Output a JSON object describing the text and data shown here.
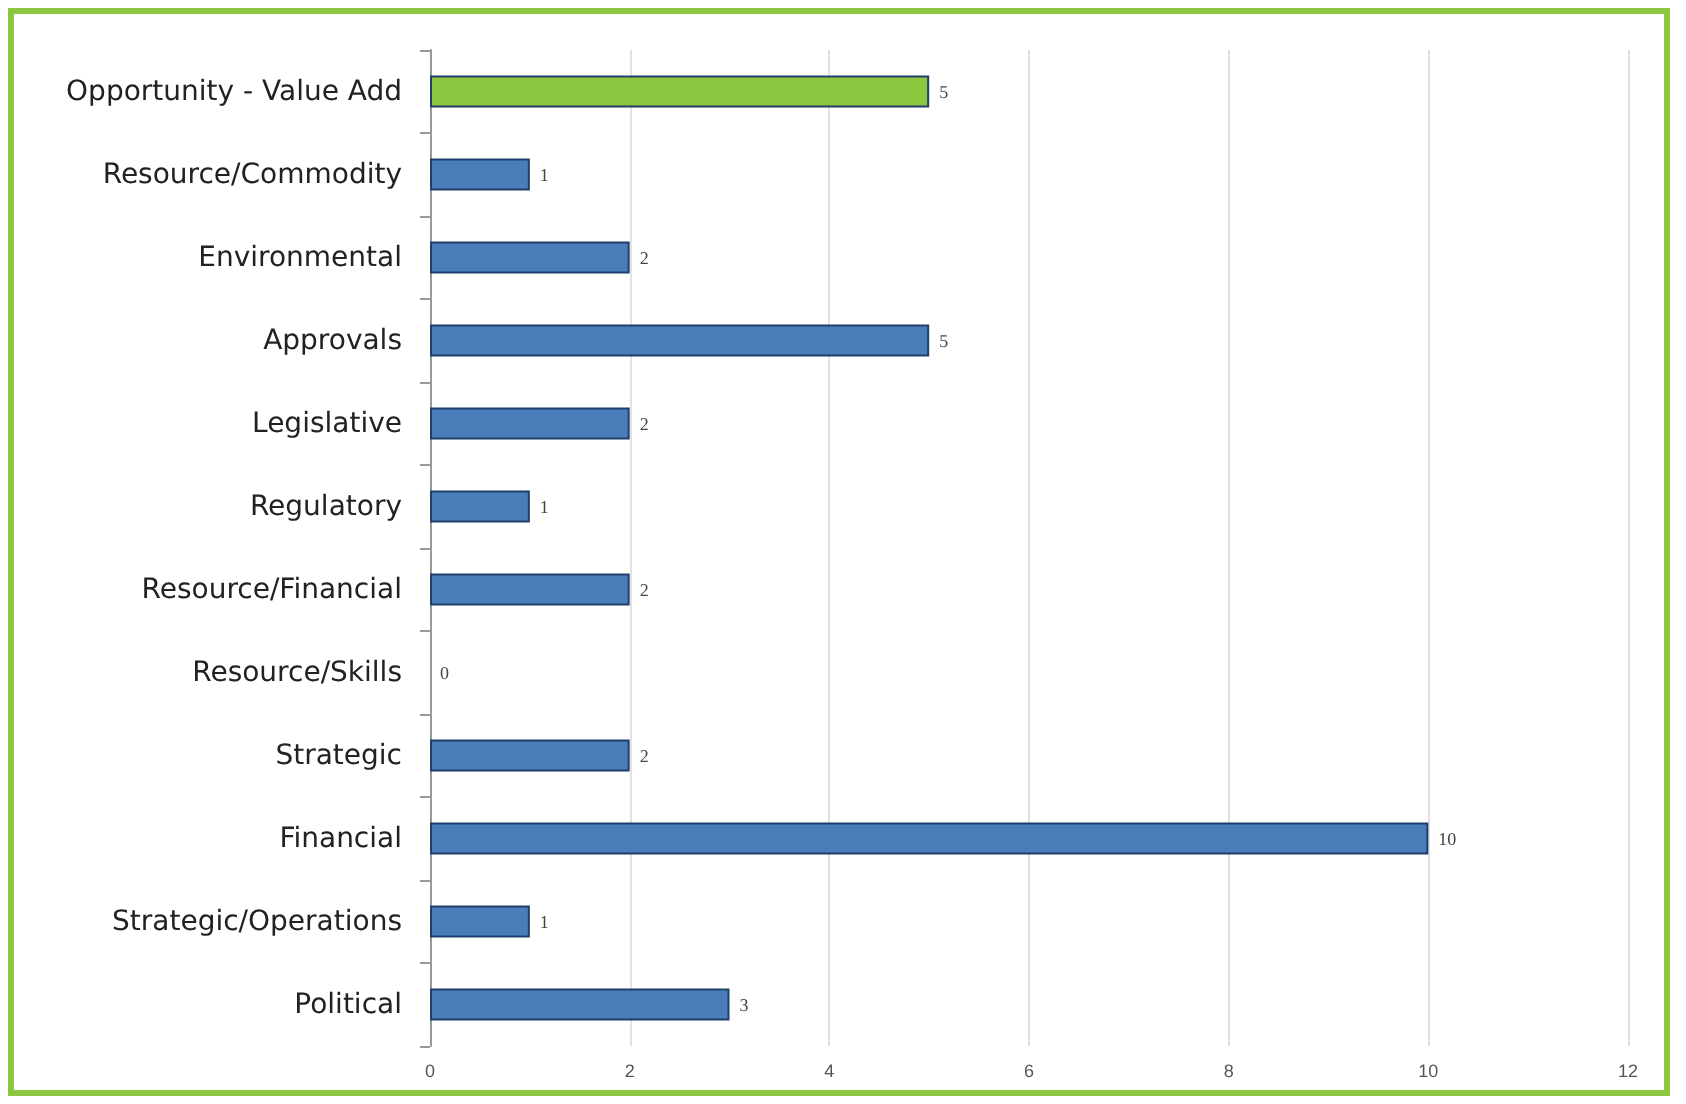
{
  "chart_data": {
    "type": "bar",
    "orientation": "horizontal",
    "categories": [
      "Opportunity - Value Add",
      "Resource/Commodity",
      "Environmental",
      "Approvals",
      "Legislative",
      "Regulatory",
      "Resource/Financial",
      "Resource/Skills",
      "Strategic",
      "Financial",
      "Strategic/Operations",
      "Political"
    ],
    "values": [
      5,
      1,
      2,
      5,
      2,
      1,
      2,
      0,
      2,
      10,
      1,
      3
    ],
    "colors": [
      "#8dc63f",
      "#4a7ebb",
      "#4a7ebb",
      "#4a7ebb",
      "#4a7ebb",
      "#4a7ebb",
      "#4a7ebb",
      "#4a7ebb",
      "#4a7ebb",
      "#4a7ebb",
      "#4a7ebb",
      "#4a7ebb"
    ],
    "xlim": [
      0,
      12
    ],
    "xticks": [
      0,
      2,
      4,
      6,
      8,
      10,
      12
    ],
    "grid": "x",
    "data_labels": true
  }
}
